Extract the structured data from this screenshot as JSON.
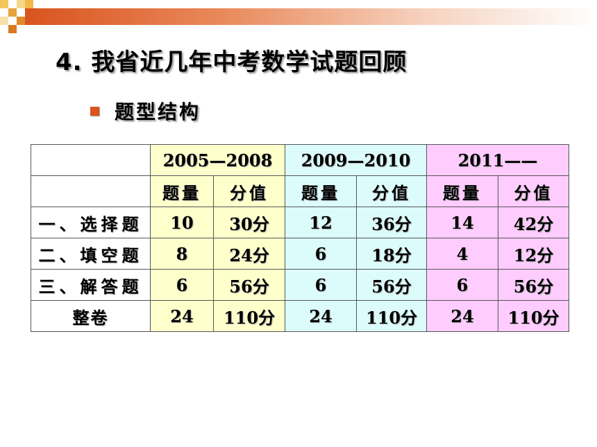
{
  "title": "4. 我省近几年中考数学试题回顾",
  "subtitle": "题型结构",
  "colors": {
    "accent": "#d9541e",
    "yellow": "#ffffcc",
    "cyan": "#dcfcfc",
    "pink": "#ffccff"
  },
  "table": {
    "periods": [
      "2005—2008",
      "2009—2010",
      "2011——"
    ],
    "subheaders": [
      "题量",
      "分值",
      "题量",
      "分值",
      "题量",
      "分值"
    ],
    "rows": [
      {
        "label": "一、选择题",
        "cells": [
          "10",
          "30分",
          "12",
          "36分",
          "14",
          "42分"
        ]
      },
      {
        "label": "二、填空题",
        "cells": [
          "8",
          "24分",
          "6",
          "18分",
          "4",
          "12分"
        ]
      },
      {
        "label": "三、解答题",
        "cells": [
          "6",
          "56分",
          "6",
          "56分",
          "6",
          "56分"
        ]
      },
      {
        "label": "整卷",
        "cells": [
          "24",
          "110分",
          "24",
          "110分",
          "24",
          "110分"
        ]
      }
    ]
  }
}
